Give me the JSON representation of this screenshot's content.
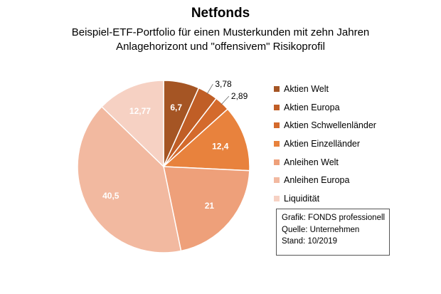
{
  "header": {
    "title": "Netfonds",
    "subtitle_line1": "Beispiel-ETF-Portfolio für einen Musterkunden mit zehn Jahren",
    "subtitle_line2": "Anlagehorizont und \"offensivem\" Risikoprofil"
  },
  "chart_data": {
    "type": "pie",
    "title": "Netfonds",
    "subtitle": "Beispiel-ETF-Portfolio für einen Musterkunden mit zehn Jahren Anlagehorizont und \"offensivem\" Risikoprofil",
    "categories": [
      "Aktien Welt",
      "Aktien Europa",
      "Aktien Schwellenländer",
      "Aktien Einzelländer",
      "Anleihen Welt",
      "Anleihen Europa",
      "Liquidität"
    ],
    "values": [
      6.7,
      3.78,
      2.89,
      12.4,
      21,
      40.5,
      12.77
    ],
    "labels": [
      "6,7",
      "3,78",
      "2,89",
      "12,4",
      "21",
      "40,5",
      "12,77"
    ],
    "colors": [
      "#a55524",
      "#c05e26",
      "#d46a2c",
      "#e8823d",
      "#eea07a",
      "#f2b9a0",
      "#f6d1c3"
    ],
    "legend_position": "right"
  },
  "info": {
    "line1": "Grafik: FONDS professionell",
    "line2": "Quelle: Unternehmen",
    "line3": "Stand: 10/2019"
  }
}
